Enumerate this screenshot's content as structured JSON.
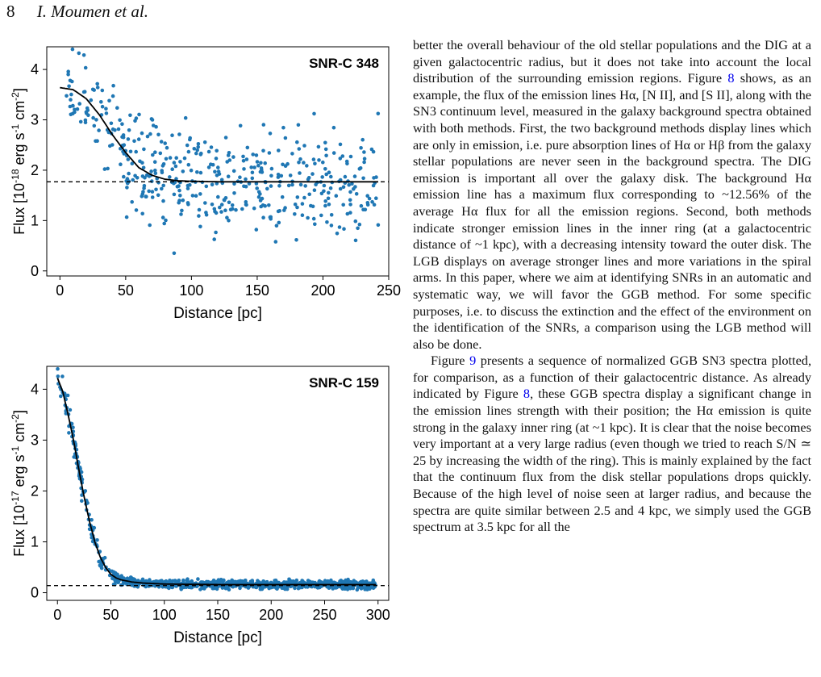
{
  "header": {
    "page_number": "8",
    "authors": "I. Moumen et al."
  },
  "chart_data": [
    {
      "type": "scatter",
      "title": "SNR-C 348",
      "xlabel": "Distance [pc]",
      "ylabel": "Flux [10-18 erg s-1 cm-2]",
      "ylabel_parts": {
        "pre": "Flux [10",
        "exp1": "-18",
        "mid1": " erg s",
        "exp2": "-1",
        "mid2": " cm",
        "exp3": "-2",
        "post": "]"
      },
      "xlim": [
        -10,
        250
      ],
      "ylim": [
        -0.1,
        4.45
      ],
      "xticks": [
        0,
        50,
        100,
        150,
        200,
        250
      ],
      "yticks": [
        0,
        1,
        2,
        3,
        4
      ],
      "xtick_labels": [
        "0",
        "50",
        "100",
        "150",
        "200",
        "250"
      ],
      "ytick_labels": [
        "0",
        "1",
        "2",
        "3",
        "4"
      ],
      "background_level": 1.77,
      "fit": {
        "x": [
          0,
          10,
          20,
          30,
          40,
          50,
          60,
          70,
          80,
          90,
          100,
          120,
          150,
          200,
          240
        ],
        "y": [
          3.64,
          3.6,
          3.42,
          3.1,
          2.7,
          2.35,
          2.05,
          1.9,
          1.82,
          1.79,
          1.78,
          1.77,
          1.77,
          1.77,
          1.77
        ]
      },
      "points": {
        "count": 470,
        "x_range": [
          5,
          242
        ],
        "y_center_fn": "fit",
        "scatter_sigma": 0.75
      },
      "point_color": "#1f77b4",
      "line_color": "#000000"
    },
    {
      "type": "scatter",
      "title": "SNR-C 159",
      "xlabel": "Distance [pc]",
      "ylabel": "Flux [10-17 erg s-1 cm-2]",
      "ylabel_parts": {
        "pre": "Flux [10",
        "exp1": "-17",
        "mid1": " erg s",
        "exp2": "-1",
        "mid2": " cm",
        "exp3": "-2",
        "post": "]"
      },
      "xlim": [
        -10,
        310
      ],
      "ylim": [
        -0.15,
        4.45
      ],
      "xticks": [
        0,
        50,
        100,
        150,
        200,
        250,
        300
      ],
      "yticks": [
        0,
        1,
        2,
        3,
        4
      ],
      "xtick_labels": [
        "0",
        "50",
        "100",
        "150",
        "200",
        "250",
        "300"
      ],
      "ytick_labels": [
        "0",
        "1",
        "2",
        "3",
        "4"
      ],
      "background_level": 0.14,
      "fit": {
        "x": [
          0,
          5,
          10,
          15,
          20,
          25,
          30,
          35,
          40,
          45,
          50,
          55,
          60,
          70,
          80,
          100,
          150,
          300
        ],
        "y": [
          4.22,
          3.95,
          3.5,
          3.0,
          2.42,
          1.88,
          1.4,
          1.0,
          0.7,
          0.5,
          0.36,
          0.29,
          0.25,
          0.21,
          0.19,
          0.17,
          0.16,
          0.16
        ]
      },
      "points": {
        "count": 900,
        "x_range": [
          0,
          298
        ],
        "y_center_fn": "fit",
        "scatter_sigma": 0.12
      },
      "point_color": "#1f77b4",
      "line_color": "#000000"
    }
  ],
  "text": {
    "p1": [
      {
        "t": "better the overall behaviour of the old stellar populations and the DIG at a given galactocentric radius, but it does not take into account the local distribution of the surrounding emission regions. Figure "
      },
      {
        "t": "8",
        "link": true
      },
      {
        "t": " shows, as an example, the flux of the emission lines Hα, [N II], and [S II], along with the SN3 continuum level, measured in the galaxy background spectra obtained with both methods. First, the two background methods display lines which are only in emission, i.e. pure absorption lines of Hα or Hβ from the galaxy stellar populations are never seen in the background spectra. The DIG emission is important all over the galaxy disk. The background Hα emission line has a maximum flux corresponding to ~12.56% of the average Hα flux for all the emission regions. Second, both methods indicate stronger emission lines in the inner ring (at a galactocentric distance of ~1 kpc), with a decreasing intensity toward the outer disk. The LGB displays on average stronger lines and more variations in the spiral arms. In this paper, where we aim at identifying SNRs in an automatic and systematic way, we will favor the GGB method. For some specific purposes, i.e. to discuss the extinction and the effect of the environment on the identification of the SNRs, a comparison using the LGB method will also be done."
      }
    ],
    "p2": [
      {
        "t": "Figure "
      },
      {
        "t": "9",
        "link": true
      },
      {
        "t": " presents a sequence of normalized GGB SN3 spectra plotted, for comparison, as a function of their galactocentric distance. As already indicated by Figure "
      },
      {
        "t": "8",
        "link": true
      },
      {
        "t": ", these GGB spectra display a significant change in the emission lines strength with their position; the Hα emission is quite strong in the galaxy inner ring (at ~1 kpc). It is clear that the noise becomes very important at a very large radius (even though we tried to reach S/N ≃ 25 by increasing the width of the ring). This is mainly explained by the fact that the continuum flux from the disk stellar populations drops quickly. Because of the high level of noise seen at larger radius, and because the spectra are quite similar between 2.5 and 4 kpc, we simply used the GGB spectrum at 3.5 kpc for all the"
      }
    ]
  }
}
